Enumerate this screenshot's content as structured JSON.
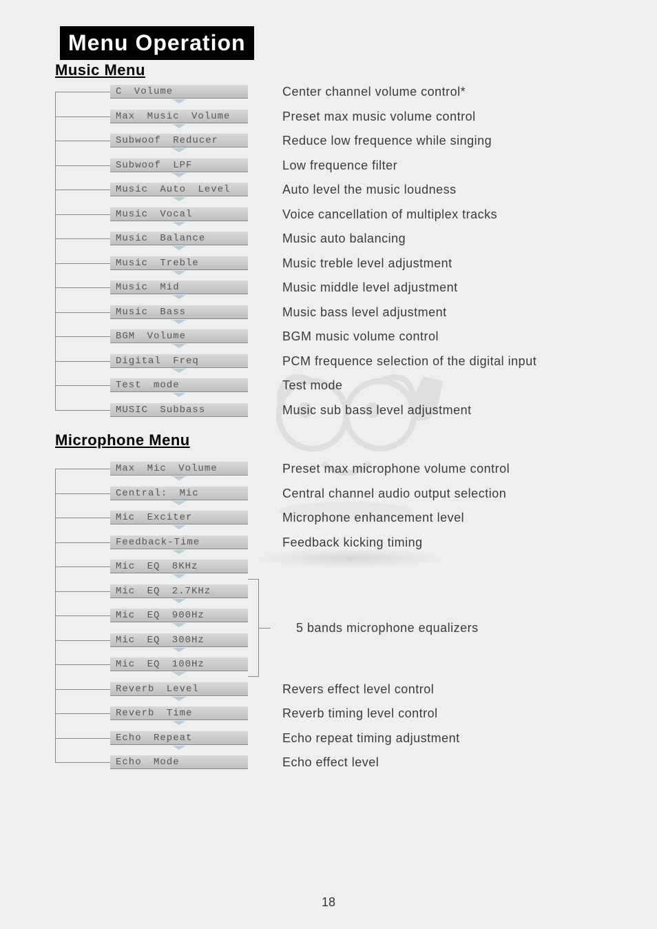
{
  "banner_title": "Menu Operation",
  "music_section_title": "Music Menu",
  "mic_section_title": "Microphone Menu",
  "page_number": "18",
  "music_items": [
    {
      "label": "C Volume",
      "desc": "Center channel volume control*"
    },
    {
      "label": "Max Music Volume",
      "desc": "Preset max music volume control"
    },
    {
      "label": "Subwoof Reducer",
      "desc": "Reduce low frequence while singing"
    },
    {
      "label": "Subwoof LPF",
      "desc": "Low frequence filter"
    },
    {
      "label": "Music Auto Level",
      "desc": "Auto level the music loudness"
    },
    {
      "label": "Music Vocal",
      "desc": "Voice cancellation of multiplex tracks"
    },
    {
      "label": "Music Balance",
      "desc": "Music auto balancing"
    },
    {
      "label": "Music Treble",
      "desc": "Music treble level adjustment"
    },
    {
      "label": "Music Mid",
      "desc": "Music middle level adjustment"
    },
    {
      "label": "Music Bass",
      "desc": "Music bass level adjustment"
    },
    {
      "label": "BGM Volume",
      "desc": "BGM music volume control"
    },
    {
      "label": "Digital Freq",
      "desc": "PCM frequence selection of the digital input"
    },
    {
      "label": "Test mode",
      "desc": "Test mode"
    },
    {
      "label": "MUSIC Subbass",
      "desc": "Music sub bass level adjustment"
    }
  ],
  "mic_items": [
    {
      "label": "Max Mic Volume",
      "desc": "Preset max microphone volume control"
    },
    {
      "label": "Central: Mic",
      "desc": "Central channel audio output selection"
    },
    {
      "label": "Mic Exciter",
      "desc": "Microphone enhancement level"
    },
    {
      "label": "Feedback-Time",
      "desc": "Feedback kicking timing"
    },
    {
      "label": "Mic EQ 8KHz",
      "desc": ""
    },
    {
      "label": "Mic EQ 2.7KHz",
      "desc": ""
    },
    {
      "label": "Mic EQ 900Hz",
      "desc": ""
    },
    {
      "label": "Mic EQ 300Hz",
      "desc": ""
    },
    {
      "label": "Mic EQ 100Hz",
      "desc": ""
    },
    {
      "label": "Reverb Level",
      "desc": "Revers effect level control"
    },
    {
      "label": "Reverb Time",
      "desc": "Reverb timing level control"
    },
    {
      "label": "Echo Repeat",
      "desc": "Echo repeat timing adjustment"
    },
    {
      "label": "Echo Mode",
      "desc": "Echo effect level"
    }
  ],
  "eq_group_desc": "5 bands microphone equalizers",
  "colors": {
    "page_bg": "#eef0ef",
    "banner_bg": "#000000",
    "banner_fg": "#ffffff",
    "box_gradient_top": "#d8d8d8",
    "box_gradient_bot": "#bfbfbf",
    "box_text": "#555555",
    "desc_text": "#3a3a3a",
    "line": "#888888",
    "arrow": "#b8cdd6"
  }
}
